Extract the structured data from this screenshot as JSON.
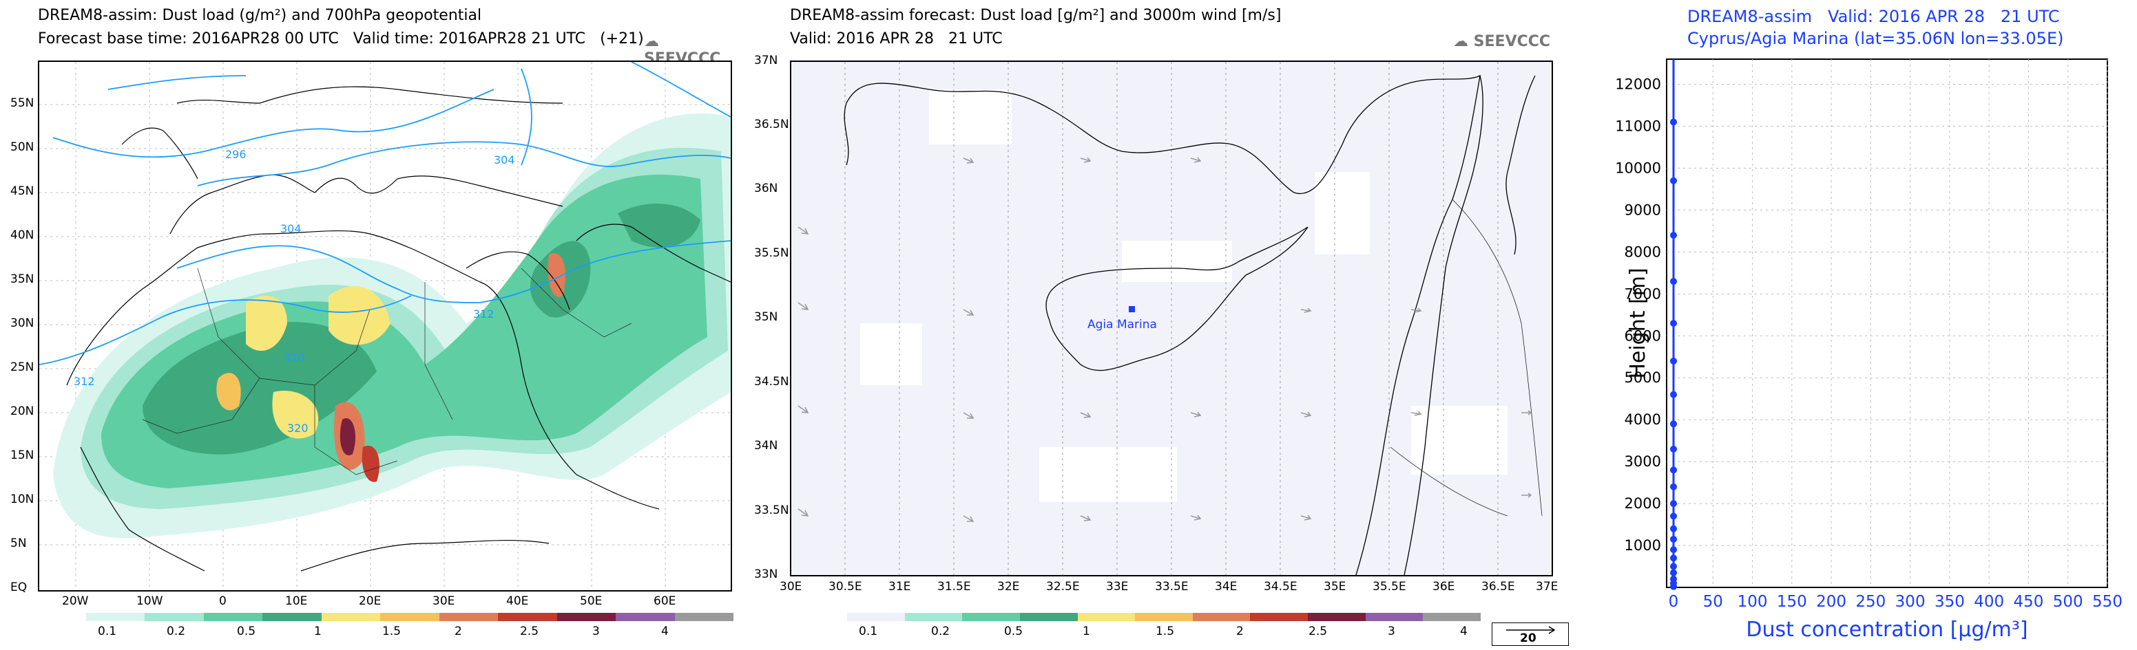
{
  "panel1": {
    "title_line1": "DREAM8-assim: Dust load (g/m²) and 700hPa geopotential",
    "title_line2": "Forecast base time: 2016APR28 00 UTC   Valid time: 2016APR28 21 UTC   (+21)",
    "logo": "SEEVCCC",
    "lat_ticks": [
      "55N",
      "50N",
      "45N",
      "40N",
      "35N",
      "30N",
      "25N",
      "20N",
      "15N",
      "10N",
      "5N",
      "EQ"
    ],
    "lon_ticks": [
      "20W",
      "10W",
      "0",
      "10E",
      "20E",
      "30E",
      "40E",
      "50E",
      "60E"
    ],
    "contour_labels": [
      "296",
      "304",
      "304",
      "312",
      "312",
      "320",
      "320"
    ],
    "colorbar_labels": [
      "0.1",
      "0.2",
      "0.5",
      "1",
      "1.5",
      "2",
      "2.5",
      "3",
      "4"
    ],
    "colorbar_colors": [
      "#d9f5ee",
      "#a6e6d2",
      "#5fcea3",
      "#3fa97e",
      "#f7e67a",
      "#f5c25a",
      "#e27c58",
      "#c33a2e",
      "#7a1f3c",
      "#8e5fa8",
      "#9a9a9a"
    ]
  },
  "panel2": {
    "title_line1": "DREAM8-assim forecast: Dust load [g/m²] and 3000m wind [m/s]",
    "title_line2": "Valid: 2016 APR 28   21 UTC",
    "logo": "SEEVCCC",
    "lat_ticks": [
      "37N",
      "36.5N",
      "36N",
      "35.5N",
      "35N",
      "34.5N",
      "34N",
      "33.5N",
      "33N"
    ],
    "lon_ticks": [
      "30E",
      "30.5E",
      "31E",
      "31.5E",
      "32E",
      "32.5E",
      "33E",
      "33.5E",
      "34E",
      "34.5E",
      "35E",
      "35.5E",
      "36E",
      "36.5E",
      "37E"
    ],
    "station_label": "Agia Marina",
    "colorbar_labels": [
      "0.1",
      "0.2",
      "0.5",
      "1",
      "1.5",
      "2",
      "2.5",
      "3",
      "4"
    ],
    "vector_ref": "20"
  },
  "panel3": {
    "title_line1": "DREAM8-assim   Valid: 2016 APR 28   21 UTC",
    "title_line2": "Cyprus/Agia Marina (lat=35.06N lon=33.05E)",
    "ylabel": "Height [m]",
    "xlabel": "Dust concentration [µg/m³]",
    "y_ticks": [
      "12000",
      "11000",
      "10000",
      "9000",
      "8000",
      "7000",
      "6000",
      "5000",
      "4000",
      "3000",
      "2000",
      "1000"
    ],
    "x_ticks": [
      "0",
      "50",
      "100",
      "150",
      "200",
      "250",
      "300",
      "350",
      "400",
      "450",
      "500",
      "550"
    ]
  },
  "chart_data": {
    "type": "line",
    "title": "DREAM8-assim   Valid: 2016 APR 28   21 UTC",
    "subtitle": "Cyprus/Agia Marina (lat=35.06N lon=33.05E)",
    "xlabel": "Dust concentration [µg/m³]",
    "ylabel": "Height [m]",
    "xlim": [
      0,
      550
    ],
    "ylim": [
      0,
      12600
    ],
    "grid": true,
    "series": [
      {
        "x": [
          0,
          0,
          0,
          0,
          0,
          0,
          0,
          0,
          0,
          0,
          0,
          0,
          0,
          0,
          0,
          0,
          0,
          0,
          0,
          0,
          0,
          0
        ],
        "y": [
          20,
          100,
          200,
          350,
          500,
          700,
          900,
          1150,
          1400,
          1700,
          2000,
          2400,
          2800,
          3300,
          3900,
          4600,
          5400,
          6300,
          7300,
          8400,
          9700,
          11100
        ]
      }
    ]
  }
}
